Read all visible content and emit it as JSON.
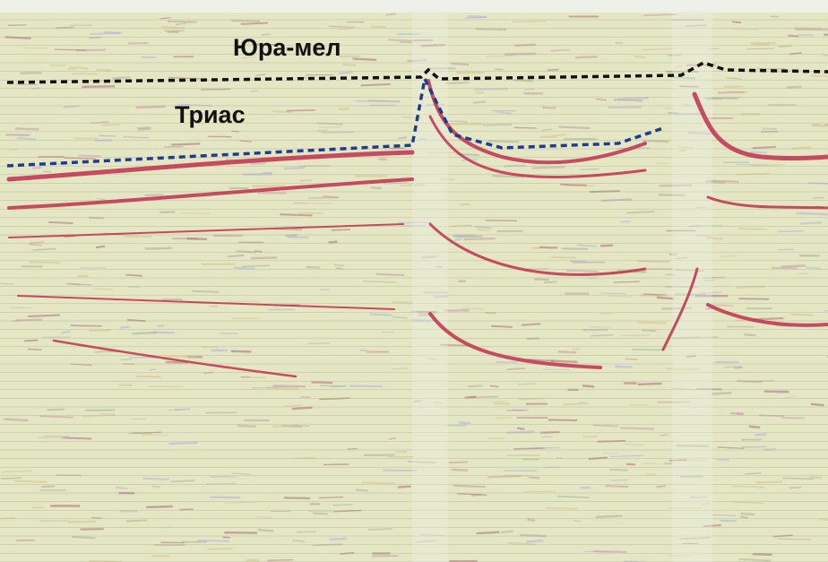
{
  "labels": {
    "upper": "Юра-мел",
    "lower": "Триас"
  }
}
